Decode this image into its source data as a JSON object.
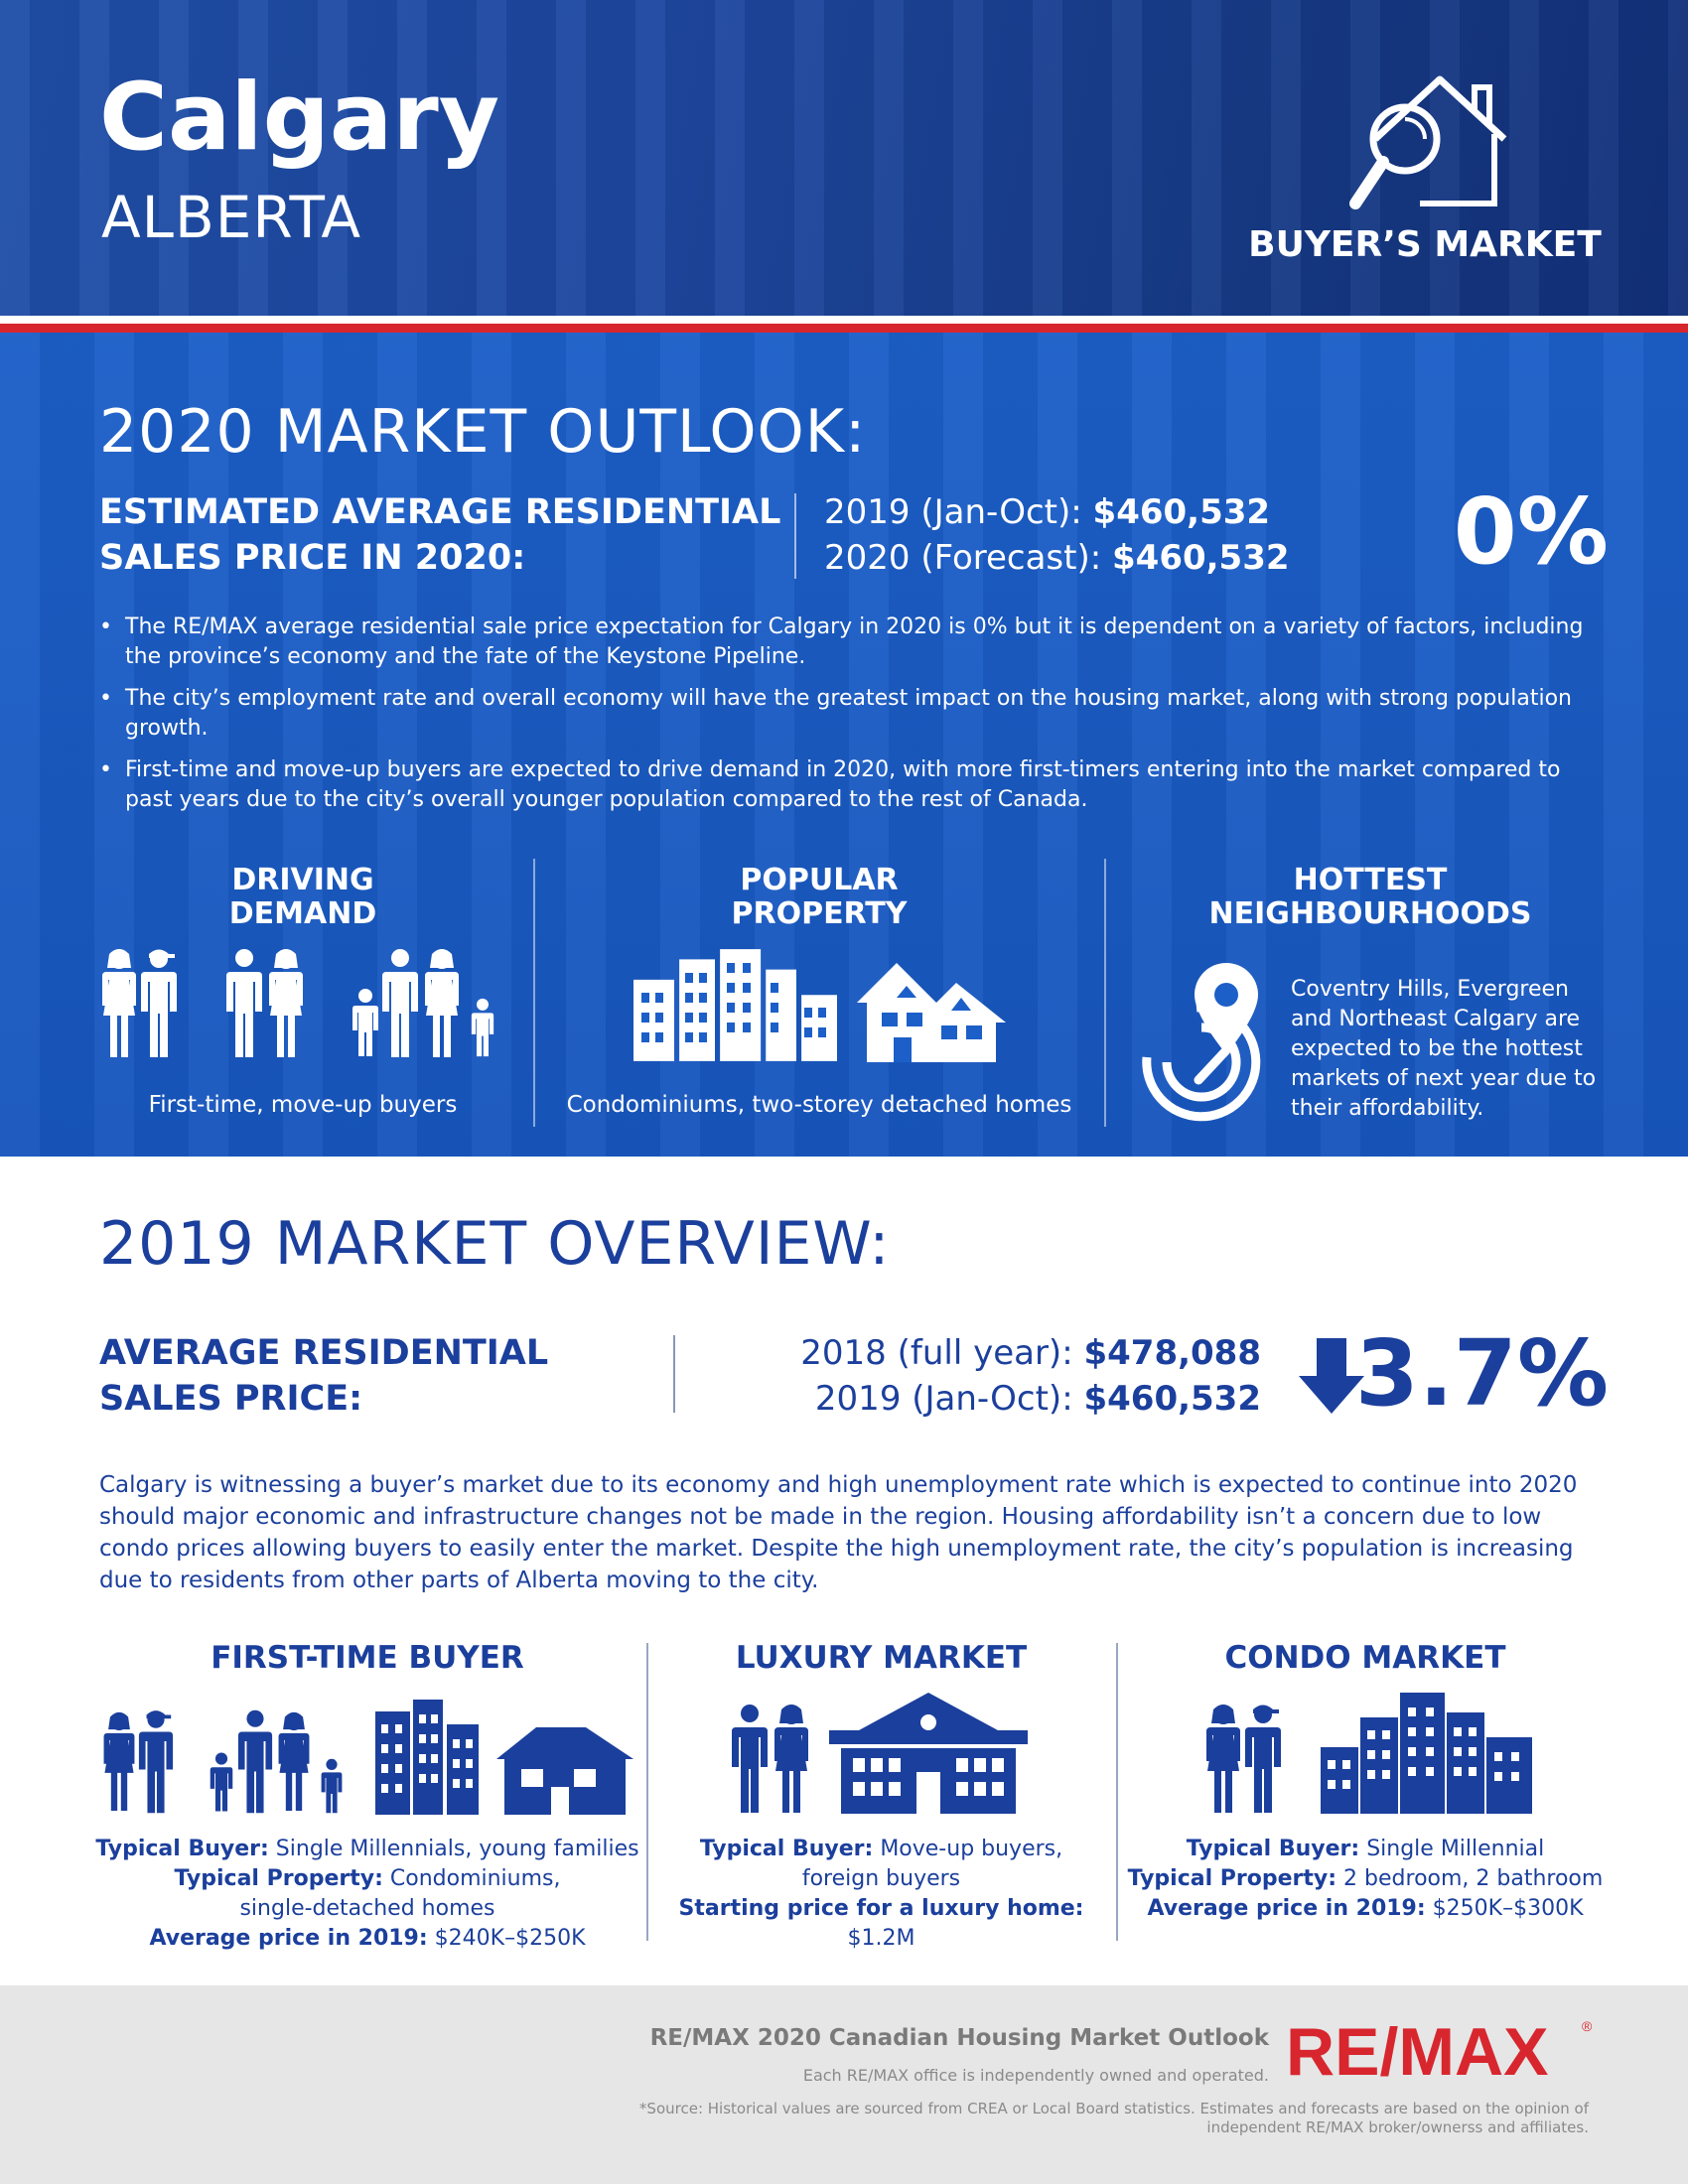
{
  "header": {
    "city": "Calgary",
    "province": "ALBERTA",
    "market_type": "BUYER’S MARKET",
    "market_icon": "house-magnifier-icon"
  },
  "outlook": {
    "title": "2020 MARKET OUTLOOK:",
    "estimate_label_line1": "ESTIMATED AVERAGE RESIDENTIAL",
    "estimate_label_line2": "SALES PRICE IN 2020:",
    "row1_label": "2019 (Jan-Oct):",
    "row1_value": "$460,532",
    "row2_label": "2020 (Forecast):",
    "row2_value": "$460,532",
    "change": "0%",
    "bullets": [
      "The RE/MAX average residential sale price expectation for Calgary in 2020 is 0% but it is dependent on a variety of factors, including the province’s economy and the fate of the Keystone Pipeline.",
      "The city’s employment rate and overall economy will have the greatest impact on the housing market, along with strong population growth.",
      "First-time and move-up buyers are expected to drive demand in 2020, with more first-timers entering into the market compared to past years due to the city’s overall younger population compared to the rest of Canada."
    ],
    "driving": {
      "title_line1": "DRIVING",
      "title_line2": "DEMAND",
      "caption": "First-time, move-up buyers"
    },
    "popular": {
      "title_line1": "POPULAR",
      "title_line2": "PROPERTY",
      "caption": "Condominiums, two-storey detached homes"
    },
    "hottest": {
      "title_line1": "HOTTEST",
      "title_line2": "NEIGHBOURHOODS",
      "text": "Coventry Hills, Evergreen and Northeast Calgary are expected to be the hottest markets of next year due to their affordability."
    }
  },
  "overview": {
    "title": "2019 MARKET OVERVIEW:",
    "label_line1": "AVERAGE RESIDENTIAL",
    "label_line2": "SALES PRICE:",
    "row1_label": "2018 (full year):",
    "row1_value": "$478,088",
    "row2_label": "2019 (Jan-Oct):",
    "row2_value": "$460,532",
    "change": "3.7%",
    "change_icon": "down-arrow-icon",
    "paragraph": "Calgary is witnessing a buyer’s market due to its economy and high unemployment rate which is expected to continue into 2020 should major economic and infrastructure changes not be made in the region. Housing affordability isn’t a concern due to low condo prices allowing buyers to easily enter the market. Despite the high unemployment rate, the city’s population is increasing due to residents from other parts of Alberta moving to the city.",
    "first_time": {
      "title": "FIRST-TIME BUYER",
      "buyer_label": "Typical Buyer:",
      "buyer_value": "Single Millennials, young families",
      "property_label": "Typical Property:",
      "property_value_line1": "Condominiums,",
      "property_value_line2": "single-detached homes",
      "price_label": "Average price in 2019:",
      "price_value": "$240K–$250K"
    },
    "luxury": {
      "title": "LUXURY MARKET",
      "buyer_label": "Typical Buyer:",
      "buyer_value_line1": "Move-up buyers,",
      "buyer_value_line2": "foreign buyers",
      "start_label": "Starting price for a luxury home:",
      "start_value": "$1.2M"
    },
    "condo": {
      "title": "CONDO MARKET",
      "buyer_label": "Typical Buyer:",
      "buyer_value": "Single Millennial",
      "property_label": "Typical Property:",
      "property_value": "2 bedroom, 2 bathroom",
      "price_label": "Average price in 2019:",
      "price_value": "$250K–$300K"
    }
  },
  "footer": {
    "title": "RE/MAX 2020 Canadian Housing Market Outlook",
    "subtitle": "Each RE/MAX office is independently owned and operated.",
    "source": "*Source: Historical values are sourced from CREA or Local Board statistics. Estimates and forecasts are based on the opinion of independent RE/MAX broker/ownerss and affiliates.",
    "logo": "RE/MAX"
  },
  "colors": {
    "navy": "#1b3f9c",
    "blue_bg": "#1c5fc8",
    "red": "#d8262e",
    "footer_gray": "#e6e6e6"
  }
}
